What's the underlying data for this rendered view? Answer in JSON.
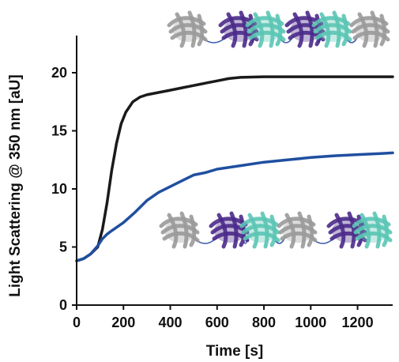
{
  "chart_data": {
    "type": "line",
    "xlabel": "Time [s]",
    "ylabel": "Light Scattering @ 350 nm  [aU]",
    "xlim": [
      0,
      1350
    ],
    "ylim": [
      0,
      21
    ],
    "xticks": [
      0,
      200,
      400,
      600,
      800,
      1000,
      1200
    ],
    "yticks": [
      0,
      5,
      10,
      15,
      20
    ],
    "grid": false,
    "series": [
      {
        "color": "#1a1a1a",
        "x": [
          0,
          30,
          60,
          90,
          110,
          130,
          150,
          170,
          190,
          210,
          240,
          270,
          300,
          350,
          400,
          450,
          500,
          550,
          600,
          650,
          700,
          800,
          900,
          1000,
          1100,
          1200,
          1300,
          1350
        ],
        "y": [
          3.8,
          4.0,
          4.4,
          5.0,
          6.5,
          8.8,
          11.6,
          13.9,
          15.6,
          16.6,
          17.5,
          17.9,
          18.1,
          18.3,
          18.5,
          18.7,
          18.9,
          19.1,
          19.3,
          19.5,
          19.6,
          19.65,
          19.65,
          19.65,
          19.65,
          19.65,
          19.65,
          19.65
        ]
      },
      {
        "color": "#1f4fa0",
        "x": [
          0,
          30,
          60,
          90,
          110,
          130,
          150,
          200,
          250,
          300,
          350,
          400,
          450,
          500,
          550,
          600,
          700,
          800,
          900,
          1000,
          1100,
          1200,
          1300,
          1350
        ],
        "y": [
          3.8,
          4.0,
          4.4,
          5.1,
          5.7,
          6.1,
          6.4,
          7.1,
          8.0,
          9.0,
          9.7,
          10.2,
          10.7,
          11.2,
          11.4,
          11.7,
          12.0,
          12.3,
          12.5,
          12.7,
          12.85,
          12.95,
          13.05,
          13.1
        ]
      }
    ]
  },
  "illustrations": [
    {
      "icon": "protein-domain-chain-icon",
      "colors": [
        "#9a9a9a",
        "#4b2a8a",
        "#5bc5b5",
        "#4b2a8a",
        "#5bc5b5",
        "#9a9a9a"
      ]
    },
    {
      "icon": "protein-domain-chain-icon",
      "colors": [
        "#9a9a9a",
        "#4b2a8a",
        "#5bc5b5",
        "#9a9a9a",
        "#4b2a8a",
        "#5bc5b5"
      ]
    }
  ]
}
